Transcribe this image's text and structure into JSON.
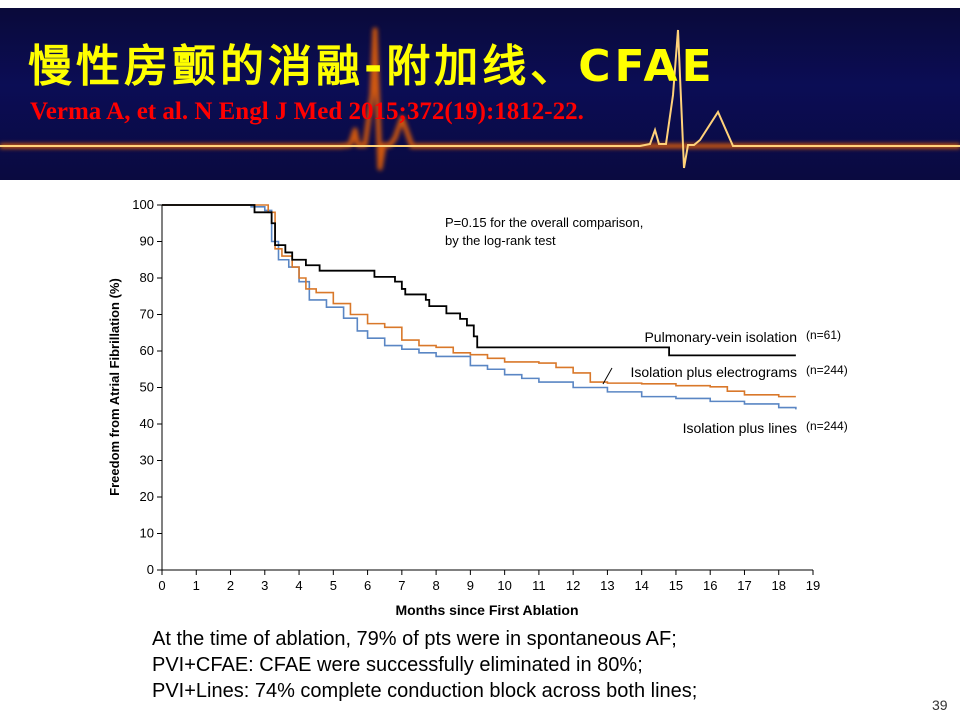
{
  "slide": {
    "title": "慢性房颤的消融-附加线、CFAE",
    "citation": "Verma A, et al. N Engl J Med 2015;372(19):1812-22.",
    "bullets": [
      "At the time of ablation, 79% of pts were in spontaneous AF;",
      "PVI+CFAE: CFAE were successfully eliminated in 80%;",
      "PVI+Lines: 74% complete conduction block across both lines;"
    ],
    "page_number": "39",
    "colors": {
      "header_bg": "#0b0d55",
      "title": "#ffff00",
      "citation": "#ff0000",
      "ecg": "#ffc860"
    }
  },
  "chart_data": {
    "type": "line",
    "subtype": "kaplan-meier step",
    "xlabel": "Months since First Ablation",
    "ylabel": "Freedom from Atrial Fibrillation (%)",
    "xlim": [
      0,
      19
    ],
    "ylim": [
      0,
      100
    ],
    "xticks": [
      "0",
      "1",
      "2",
      "3",
      "4",
      "5",
      "6",
      "7",
      "8",
      "9",
      "10",
      "11",
      "12",
      "13",
      "14",
      "15",
      "16",
      "17",
      "18",
      "19"
    ],
    "yticks": [
      "0",
      "10",
      "20",
      "30",
      "40",
      "50",
      "60",
      "70",
      "80",
      "90",
      "100"
    ],
    "grid": false,
    "annotation": [
      "P=0.15 for the overall comparison,",
      "by the log-rank test"
    ],
    "series": [
      {
        "name": "Pulmonary-vein isolation",
        "n": "(n=61)",
        "color": "#000000",
        "points": [
          [
            0,
            100
          ],
          [
            2.7,
            100
          ],
          [
            2.7,
            98
          ],
          [
            3.2,
            98
          ],
          [
            3.2,
            95
          ],
          [
            3.3,
            89
          ],
          [
            3.6,
            89
          ],
          [
            3.6,
            87
          ],
          [
            3.8,
            87
          ],
          [
            3.8,
            85
          ],
          [
            4.2,
            85
          ],
          [
            4.2,
            83.5
          ],
          [
            4.6,
            83.5
          ],
          [
            4.6,
            82
          ],
          [
            6.2,
            82
          ],
          [
            6.2,
            80.3
          ],
          [
            6.8,
            80.3
          ],
          [
            6.8,
            79
          ],
          [
            7.0,
            77
          ],
          [
            7.1,
            75.5
          ],
          [
            7.6,
            75.5
          ],
          [
            7.7,
            74
          ],
          [
            7.8,
            72.3
          ],
          [
            8.2,
            72.3
          ],
          [
            8.3,
            70.3
          ],
          [
            8.6,
            70.3
          ],
          [
            8.7,
            68.8
          ],
          [
            8.9,
            67
          ],
          [
            9.1,
            64
          ],
          [
            9.2,
            61
          ],
          [
            14.8,
            61
          ],
          [
            14.8,
            58.8
          ],
          [
            18.5,
            58.8
          ]
        ]
      },
      {
        "name": "Isolation plus electrograms",
        "n": "(n=244)",
        "color": "#d9782a",
        "points": [
          [
            0,
            100
          ],
          [
            2.8,
            100
          ],
          [
            3.1,
            98
          ],
          [
            3.3,
            88
          ],
          [
            3.5,
            86
          ],
          [
            3.8,
            83
          ],
          [
            4.0,
            80
          ],
          [
            4.2,
            77
          ],
          [
            4.5,
            76
          ],
          [
            5.0,
            73
          ],
          [
            5.5,
            70
          ],
          [
            6.0,
            67.5
          ],
          [
            6.5,
            66.5
          ],
          [
            7.0,
            63
          ],
          [
            7.5,
            61.5
          ],
          [
            8.0,
            61
          ],
          [
            8.5,
            59.5
          ],
          [
            9.0,
            59
          ],
          [
            9.5,
            58
          ],
          [
            10.0,
            57
          ],
          [
            11.0,
            56.7
          ],
          [
            11.5,
            55.5
          ],
          [
            12.0,
            54
          ],
          [
            12.5,
            51.5
          ],
          [
            13.0,
            51.2
          ],
          [
            14.0,
            51
          ],
          [
            15.0,
            50.5
          ],
          [
            16.0,
            50.2
          ],
          [
            16.5,
            49
          ],
          [
            17.0,
            48
          ],
          [
            18.0,
            47.5
          ],
          [
            18.5,
            47.5
          ]
        ]
      },
      {
        "name": "Isolation plus lines",
        "n": "(n=244)",
        "color": "#5a86c4",
        "points": [
          [
            0,
            100
          ],
          [
            2.6,
            99.5
          ],
          [
            3.0,
            98.5
          ],
          [
            3.2,
            90
          ],
          [
            3.4,
            85
          ],
          [
            3.7,
            83
          ],
          [
            4.0,
            79
          ],
          [
            4.3,
            74
          ],
          [
            4.8,
            72
          ],
          [
            5.3,
            69
          ],
          [
            5.7,
            65.5
          ],
          [
            6.0,
            63.5
          ],
          [
            6.5,
            61.5
          ],
          [
            7.0,
            60.5
          ],
          [
            7.5,
            59.5
          ],
          [
            8.0,
            58.5
          ],
          [
            8.7,
            58.5
          ],
          [
            9.0,
            56
          ],
          [
            9.5,
            55
          ],
          [
            10.0,
            53.5
          ],
          [
            10.5,
            52.5
          ],
          [
            11.0,
            51.5
          ],
          [
            12.0,
            50
          ],
          [
            13.0,
            48.8
          ],
          [
            14.0,
            47.5
          ],
          [
            15.0,
            47
          ],
          [
            16.0,
            46.2
          ],
          [
            17.0,
            45.5
          ],
          [
            18.0,
            44.5
          ],
          [
            18.5,
            44
          ]
        ]
      }
    ]
  }
}
